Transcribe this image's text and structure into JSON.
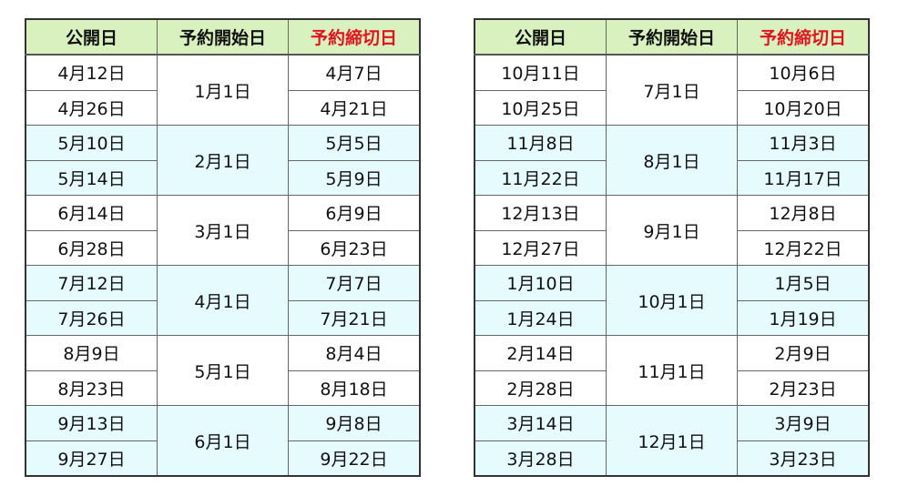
{
  "headers": [
    "公開日",
    "予約開始日",
    "予約締切日"
  ],
  "accent_red": "#e0141e",
  "header_bg": "#d9f1bf",
  "shade_bg": "#e6fbfd",
  "tables": [
    {
      "groups": [
        {
          "start": "1月1日",
          "rows": [
            [
              "4月12日",
              "4月7日"
            ],
            [
              "4月26日",
              "4月21日"
            ]
          ]
        },
        {
          "start": "2月1日",
          "rows": [
            [
              "5月10日",
              "5月5日"
            ],
            [
              "5月14日",
              "5月9日"
            ]
          ]
        },
        {
          "start": "3月1日",
          "rows": [
            [
              "6月14日",
              "6月9日"
            ],
            [
              "6月28日",
              "6月23日"
            ]
          ]
        },
        {
          "start": "4月1日",
          "rows": [
            [
              "7月12日",
              "7月7日"
            ],
            [
              "7月26日",
              "7月21日"
            ]
          ]
        },
        {
          "start": "5月1日",
          "rows": [
            [
              "8月9日",
              "8月4日"
            ],
            [
              "8月23日",
              "8月18日"
            ]
          ]
        },
        {
          "start": "6月1日",
          "rows": [
            [
              "9月13日",
              "9月8日"
            ],
            [
              "9月27日",
              "9月22日"
            ]
          ]
        }
      ]
    },
    {
      "groups": [
        {
          "start": "7月1日",
          "rows": [
            [
              "10月11日",
              "10月6日"
            ],
            [
              "10月25日",
              "10月20日"
            ]
          ]
        },
        {
          "start": "8月1日",
          "rows": [
            [
              "11月8日",
              "11月3日"
            ],
            [
              "11月22日",
              "11月17日"
            ]
          ]
        },
        {
          "start": "9月1日",
          "rows": [
            [
              "12月13日",
              "12月8日"
            ],
            [
              "12月27日",
              "12月22日"
            ]
          ]
        },
        {
          "start": "10月1日",
          "rows": [
            [
              "1月10日",
              "1月5日"
            ],
            [
              "1月24日",
              "1月19日"
            ]
          ]
        },
        {
          "start": "11月1日",
          "rows": [
            [
              "2月14日",
              "2月9日"
            ],
            [
              "2月28日",
              "2月23日"
            ]
          ]
        },
        {
          "start": "12月1日",
          "rows": [
            [
              "3月14日",
              "3月9日"
            ],
            [
              "3月28日",
              "3月23日"
            ]
          ]
        }
      ]
    }
  ]
}
